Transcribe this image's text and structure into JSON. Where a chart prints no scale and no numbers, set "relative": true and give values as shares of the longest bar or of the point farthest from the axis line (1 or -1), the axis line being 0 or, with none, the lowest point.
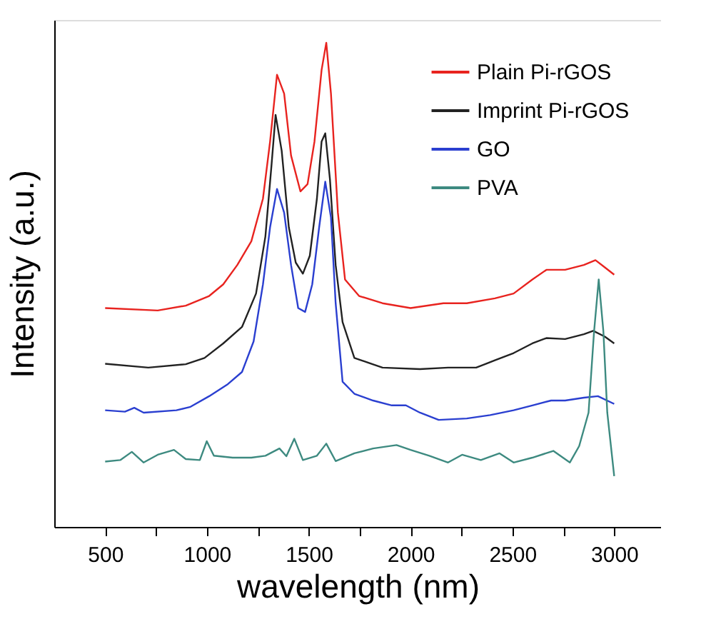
{
  "chart_data": {
    "type": "line",
    "xlabel": "wavelength (nm)",
    "ylabel": "Intensity (a.u.)",
    "relative": true,
    "xlim": [
      250,
      3230
    ],
    "xticks": [
      500,
      {
        "value": 750,
        "label": null
      },
      1000,
      {
        "value": 1250,
        "label": null
      },
      1500,
      {
        "value": 1750,
        "label": null
      },
      2000,
      {
        "value": 2250,
        "label": null
      },
      2500,
      {
        "value": 2750,
        "label": null
      },
      3000
    ],
    "grid": false,
    "legend": "top right",
    "line_style": "solid",
    "marker": "none",
    "series": [
      {
        "name": "Plain Pi-rGOS",
        "color": "#e8231f",
        "x": [
          500,
          758,
          896,
          1011,
          1080,
          1149,
          1218,
          1275,
          1310,
          1344,
          1379,
          1413,
          1459,
          1494,
          1528,
          1563,
          1586,
          1609,
          1643,
          1678,
          1747,
          1862,
          2000,
          2161,
          2276,
          2414,
          2506,
          2598,
          2667,
          2759,
          2851,
          2908,
          2954,
          3000
        ],
        "values": [
          0.452,
          0.447,
          0.457,
          0.477,
          0.501,
          0.541,
          0.59,
          0.678,
          0.796,
          0.934,
          0.895,
          0.767,
          0.693,
          0.708,
          0.796,
          0.944,
          1.0,
          0.895,
          0.649,
          0.511,
          0.477,
          0.462,
          0.452,
          0.462,
          0.462,
          0.472,
          0.482,
          0.511,
          0.531,
          0.531,
          0.541,
          0.551,
          0.536,
          0.521
        ]
      },
      {
        "name": "Imprint Pi-rGOS",
        "color": "#222222",
        "x": [
          500,
          712,
          896,
          988,
          1080,
          1172,
          1241,
          1287,
          1317,
          1337,
          1367,
          1402,
          1436,
          1471,
          1505,
          1540,
          1563,
          1581,
          1604,
          1632,
          1666,
          1724,
          1862,
          2046,
          2184,
          2322,
          2414,
          2506,
          2598,
          2667,
          2759,
          2851,
          2897,
          2954,
          3000
        ],
        "values": [
          0.337,
          0.329,
          0.336,
          0.349,
          0.379,
          0.413,
          0.482,
          0.6,
          0.747,
          0.851,
          0.777,
          0.619,
          0.546,
          0.523,
          0.56,
          0.678,
          0.796,
          0.813,
          0.718,
          0.541,
          0.423,
          0.349,
          0.329,
          0.326,
          0.329,
          0.329,
          0.344,
          0.359,
          0.379,
          0.39,
          0.388,
          0.398,
          0.405,
          0.393,
          0.379
        ]
      },
      {
        "name": "GO",
        "color": "#2a3fd0",
        "x": [
          500,
          597,
          643,
          689,
          850,
          919,
          1011,
          1103,
          1172,
          1229,
          1275,
          1310,
          1344,
          1379,
          1413,
          1448,
          1482,
          1517,
          1551,
          1581,
          1609,
          1632,
          1666,
          1724,
          1816,
          1908,
          1977,
          2046,
          2138,
          2276,
          2391,
          2506,
          2598,
          2690,
          2759,
          2851,
          2920,
          3000
        ],
        "values": [
          0.241,
          0.238,
          0.246,
          0.236,
          0.241,
          0.248,
          0.27,
          0.295,
          0.32,
          0.383,
          0.501,
          0.619,
          0.698,
          0.649,
          0.541,
          0.452,
          0.444,
          0.501,
          0.619,
          0.713,
          0.639,
          0.462,
          0.3,
          0.275,
          0.261,
          0.251,
          0.251,
          0.236,
          0.221,
          0.224,
          0.231,
          0.241,
          0.251,
          0.261,
          0.261,
          0.267,
          0.27,
          0.254
        ]
      },
      {
        "name": "PVA",
        "color": "#3d8a80",
        "x": [
          500,
          574,
          631,
          689,
          758,
          838,
          896,
          965,
          999,
          1034,
          1126,
          1218,
          1287,
          1356,
          1390,
          1429,
          1471,
          1540,
          1586,
          1632,
          1724,
          1816,
          1931,
          2000,
          2092,
          2184,
          2253,
          2345,
          2437,
          2506,
          2598,
          2701,
          2782,
          2828,
          2874,
          2901,
          2924,
          2947,
          2966,
          3000
        ],
        "values": [
          0.135,
          0.138,
          0.155,
          0.133,
          0.149,
          0.159,
          0.14,
          0.138,
          0.177,
          0.147,
          0.143,
          0.143,
          0.147,
          0.162,
          0.146,
          0.182,
          0.138,
          0.147,
          0.172,
          0.136,
          0.152,
          0.162,
          0.169,
          0.159,
          0.147,
          0.133,
          0.149,
          0.138,
          0.152,
          0.133,
          0.143,
          0.157,
          0.133,
          0.167,
          0.236,
          0.403,
          0.511,
          0.403,
          0.236,
          0.105
        ]
      }
    ]
  }
}
